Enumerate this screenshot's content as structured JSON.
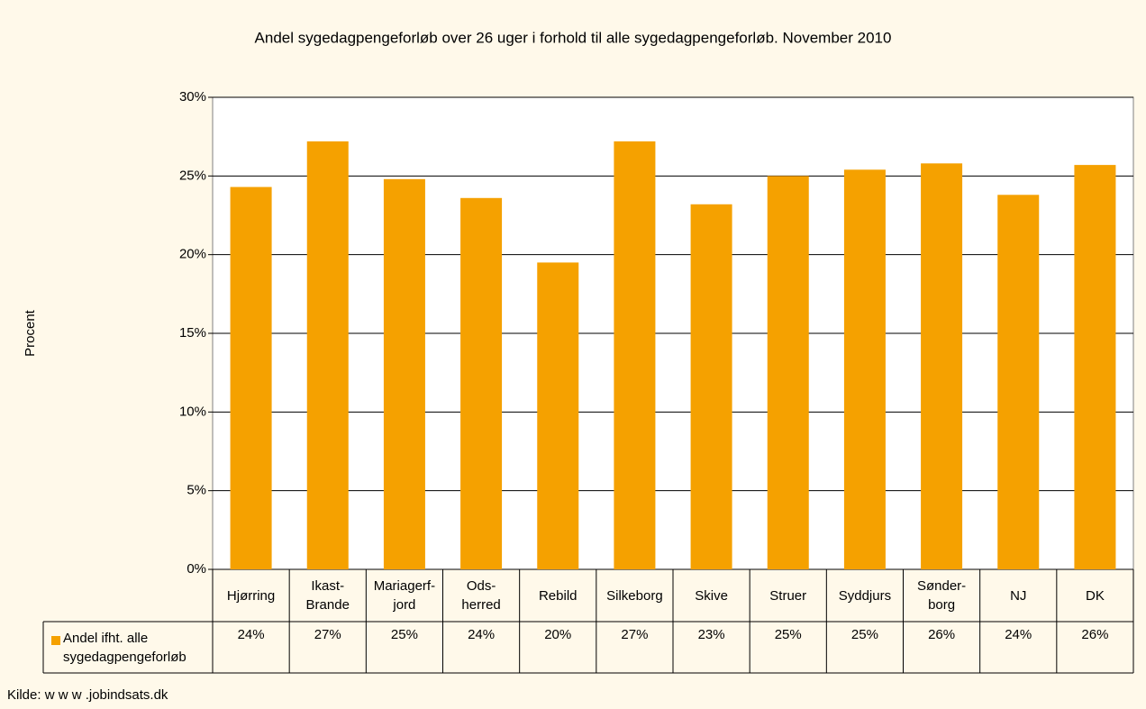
{
  "chart_data": {
    "type": "bar",
    "title": "Andel sygedagpengeforløb over 26 uger i forhold til alle sygedagpengeforløb. November 2010",
    "y_label": "Procent",
    "categories": [
      "Hjørring",
      "Ikast-\nBrande",
      "Mariagerf-\njord",
      "Ods-\nherred",
      "Rebild",
      "Silkeborg",
      "Skive",
      "Struer",
      "Syddjurs",
      "Sønder-\nborg",
      "NJ",
      "DK"
    ],
    "series": [
      {
        "name": "Andel ifht. alle sygedagpengeforløb",
        "color": "#f5a100",
        "values": [
          24.3,
          27.2,
          24.8,
          23.6,
          19.5,
          27.2,
          23.2,
          25.0,
          25.4,
          25.8,
          23.8,
          25.7
        ],
        "value_labels": [
          "24%",
          "27%",
          "25%",
          "24%",
          "20%",
          "27%",
          "23%",
          "25%",
          "25%",
          "26%",
          "24%",
          "26%"
        ]
      }
    ],
    "ylim": [
      0,
      30
    ],
    "yticks": [
      {
        "value": 0,
        "label": "0%"
      },
      {
        "value": 5,
        "label": "5%"
      },
      {
        "value": 10,
        "label": "10%"
      },
      {
        "value": 15,
        "label": "15%"
      },
      {
        "value": 20,
        "label": "20%"
      },
      {
        "value": 25,
        "label": "25%"
      },
      {
        "value": 30,
        "label": "30%"
      }
    ],
    "grid": true,
    "source": "Kilde: w w w .jobindsats.dk"
  }
}
